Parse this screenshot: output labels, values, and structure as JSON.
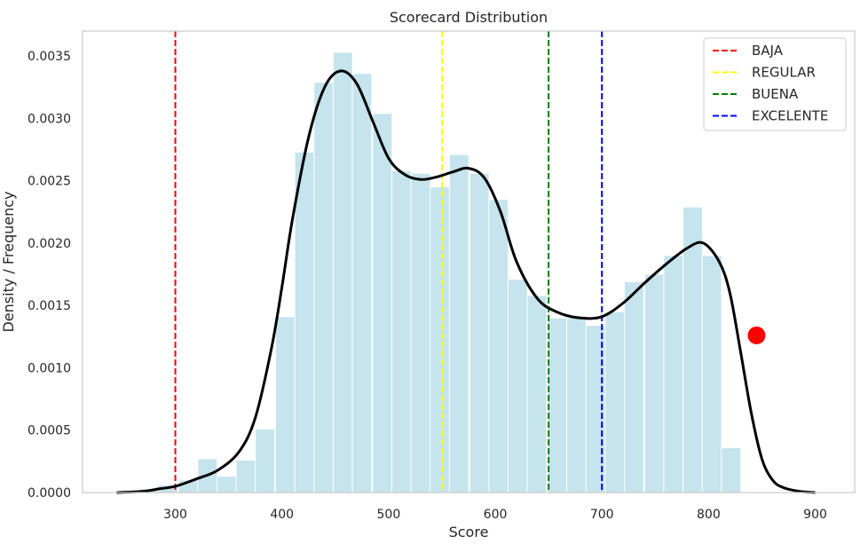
{
  "chart_data": {
    "type": "histogram",
    "title": "Scorecard Distribution",
    "xlabel": "Score",
    "ylabel": "Density / Frequency",
    "xlim": [
      213,
      937
    ],
    "ylim": [
      0,
      0.0037
    ],
    "x_ticks": [
      "300",
      "400",
      "500",
      "600",
      "700",
      "800",
      "900"
    ],
    "x_tick_values": [
      300,
      400,
      500,
      600,
      700,
      800,
      900
    ],
    "y_ticks": [
      "0.0000",
      "0.0005",
      "0.0010",
      "0.0015",
      "0.0020",
      "0.0025",
      "0.0030",
      "0.0035"
    ],
    "y_tick_values": [
      0,
      0.0005,
      0.001,
      0.0015,
      0.002,
      0.0025,
      0.003,
      0.0035
    ],
    "grid": false,
    "legend_position": "top-right",
    "histogram": {
      "color": "#add8e6",
      "bin_width": 18.2,
      "bin_left": [
        248,
        266,
        284,
        303,
        321,
        339,
        357,
        375,
        394,
        412,
        430,
        448,
        466,
        485,
        503,
        521,
        539,
        557,
        576,
        594,
        612,
        630,
        649,
        667,
        685,
        703,
        721,
        740,
        758,
        776,
        794,
        812,
        831
      ],
      "values": [
        2e-05,
        3e-05,
        6e-05,
        0.0001,
        0.00027,
        0.00013,
        0.00026,
        0.00051,
        0.00141,
        0.00273,
        0.00329,
        0.00353,
        0.00336,
        0.00304,
        0.00258,
        0.00256,
        0.00245,
        0.00271,
        0.00256,
        0.00235,
        0.00171,
        0.00158,
        0.0014,
        0.0014,
        0.00134,
        0.00145,
        0.00169,
        0.00175,
        0.0019,
        0.00229,
        0.0019,
        0.00036,
        0.0
      ]
    },
    "kde": {
      "color": "#000000",
      "x": [
        245,
        270,
        285,
        300,
        320,
        340,
        360,
        375,
        390,
        400,
        410,
        425,
        440,
        455,
        470,
        485,
        500,
        515,
        530,
        545,
        560,
        575,
        590,
        605,
        620,
        640,
        660,
        680,
        700,
        720,
        740,
        760,
        780,
        795,
        810,
        820,
        830,
        840,
        850,
        860,
        870,
        885,
        900
      ],
      "y": [
        0.0,
        1e-05,
        3e-05,
        5e-05,
        0.00011,
        0.00018,
        0.00033,
        0.0006,
        0.00115,
        0.00165,
        0.0022,
        0.00285,
        0.00325,
        0.00338,
        0.00328,
        0.00298,
        0.00268,
        0.00255,
        0.00251,
        0.00253,
        0.00257,
        0.0026,
        0.00252,
        0.00225,
        0.00185,
        0.00155,
        0.00144,
        0.0014,
        0.00141,
        0.00152,
        0.00168,
        0.00183,
        0.00196,
        0.002,
        0.00185,
        0.0016,
        0.00113,
        0.00064,
        0.00027,
        0.0001,
        4e-05,
        1e-05,
        0.0
      ]
    },
    "vlines": [
      {
        "label": "BAJA",
        "x": 300,
        "color": "#ff0000"
      },
      {
        "label": "REGULAR",
        "x": 550,
        "color": "#ffff00"
      },
      {
        "label": "BUENA",
        "x": 650,
        "color": "#008000"
      },
      {
        "label": "EXCELENTE",
        "x": 700,
        "color": "#0000ff"
      }
    ],
    "marker": {
      "x": 845,
      "y": 0.00126,
      "color": "#ff0000"
    }
  }
}
